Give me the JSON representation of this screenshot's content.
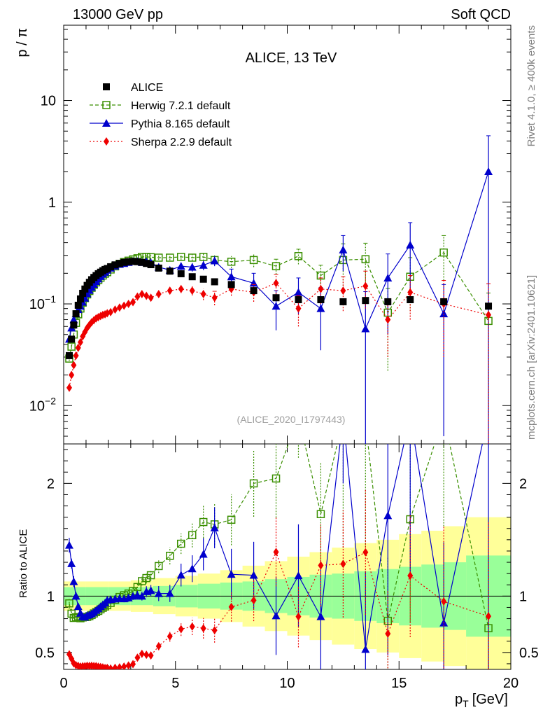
{
  "header": {
    "left": "13000 GeV pp",
    "right": "Soft QCD",
    "side_top": "Rivet 4.1.0, ≥ 400k events",
    "side_bottom": "mcplots.cern.ch [arXiv:2401.10621]"
  },
  "chart_data": {
    "type": "scatter",
    "title": "ALICE, 13 TeV",
    "analysis_id": "(ALICE_2020_I1797443)",
    "xlabel_main": "p",
    "xlabel_sub": "T",
    "xlabel_unit": "[GeV]",
    "ylabel": "p / π",
    "ratio_ylabel": "Ratio to ALICE",
    "xlim": [
      0,
      20
    ],
    "ylim": [
      0.0042,
      55
    ],
    "yscale": "log",
    "ratio_ylim": [
      0.35,
      2.35
    ],
    "x_ticks": [
      "0",
      "5",
      "10",
      "15",
      "20"
    ],
    "y_ticks": [
      {
        "v": 0.01,
        "base": "10",
        "exp": "−2"
      },
      {
        "v": 0.1,
        "base": "10",
        "exp": "−1"
      },
      {
        "v": 1,
        "base": "1",
        "exp": ""
      },
      {
        "v": 10,
        "base": "10",
        "exp": ""
      }
    ],
    "ratio_ticks": [
      {
        "v": 0.5,
        "label": "0.5"
      },
      {
        "v": 1,
        "label": "1"
      },
      {
        "v": 2,
        "label": "2"
      }
    ],
    "legend": [
      {
        "name": "ALICE",
        "color": "#000000",
        "marker": "square"
      },
      {
        "name": "Herwig 7.2.1 default",
        "color": "#3a8f00",
        "marker": "open-square"
      },
      {
        "name": "Pythia 8.165 default",
        "color": "#0000cc",
        "marker": "triangle"
      },
      {
        "name": "Sherpa 2.2.9 default",
        "color": "#ee0000",
        "marker": "diamond"
      }
    ],
    "data": {
      "x": [
        0.25,
        0.35,
        0.45,
        0.55,
        0.65,
        0.75,
        0.85,
        0.95,
        1.05,
        1.15,
        1.25,
        1.35,
        1.45,
        1.55,
        1.65,
        1.75,
        1.85,
        1.95,
        2.1,
        2.3,
        2.5,
        2.7,
        2.9,
        3.1,
        3.3,
        3.5,
        3.7,
        3.9,
        4.25,
        4.75,
        5.25,
        5.75,
        6.25,
        6.75,
        7.5,
        8.5,
        9.5,
        10.5,
        11.5,
        12.5,
        13.5,
        14.5,
        15.5,
        17.0,
        19.0
      ],
      "alice": [
        0.031,
        0.045,
        0.062,
        0.08,
        0.097,
        0.112,
        0.127,
        0.14,
        0.152,
        0.163,
        0.173,
        0.182,
        0.19,
        0.198,
        0.205,
        0.212,
        0.218,
        0.223,
        0.232,
        0.242,
        0.25,
        0.256,
        0.26,
        0.262,
        0.26,
        0.256,
        0.25,
        0.243,
        0.225,
        0.21,
        0.198,
        0.185,
        0.175,
        0.165,
        0.155,
        0.135,
        0.115,
        0.11,
        0.11,
        0.105,
        0.108,
        0.105,
        0.11,
        0.105,
        0.095
      ],
      "herwig": [
        0.029,
        0.038,
        0.05,
        0.065,
        0.079,
        0.09,
        0.103,
        0.114,
        0.124,
        0.134,
        0.144,
        0.154,
        0.163,
        0.172,
        0.181,
        0.19,
        0.198,
        0.205,
        0.218,
        0.234,
        0.248,
        0.258,
        0.266,
        0.274,
        0.281,
        0.29,
        0.29,
        0.288,
        0.285,
        0.285,
        0.29,
        0.285,
        0.29,
        0.27,
        0.26,
        0.27,
        0.235,
        0.295,
        0.19,
        0.27,
        0.275,
        0.082,
        0.185,
        0.32,
        0.068
      ],
      "herwig_err": [
        0.0015,
        0.002,
        0.002,
        0.002,
        0.003,
        0.003,
        0.003,
        0.003,
        0.004,
        0.004,
        0.004,
        0.004,
        0.005,
        0.005,
        0.005,
        0.005,
        0.006,
        0.006,
        0.006,
        0.007,
        0.007,
        0.008,
        0.008,
        0.009,
        0.009,
        0.01,
        0.012,
        0.012,
        0.014,
        0.016,
        0.018,
        0.02,
        0.025,
        0.03,
        0.035,
        0.04,
        0.04,
        0.05,
        0.05,
        0.12,
        0.12,
        0.06,
        0.1,
        0.15,
        0.06
      ],
      "pythia": [
        0.045,
        0.058,
        0.07,
        0.08,
        0.088,
        0.095,
        0.104,
        0.114,
        0.126,
        0.136,
        0.146,
        0.156,
        0.166,
        0.176,
        0.186,
        0.196,
        0.205,
        0.215,
        0.225,
        0.236,
        0.245,
        0.25,
        0.256,
        0.262,
        0.262,
        0.256,
        0.26,
        0.255,
        0.23,
        0.215,
        0.235,
        0.23,
        0.24,
        0.265,
        0.185,
        0.16,
        0.095,
        0.13,
        0.09,
        0.34,
        0.057,
        0.18,
        0.38,
        0.08,
        2.0
      ],
      "pythia_err": [
        0.002,
        0.002,
        0.003,
        0.003,
        0.003,
        0.003,
        0.004,
        0.004,
        0.004,
        0.004,
        0.005,
        0.005,
        0.005,
        0.005,
        0.006,
        0.006,
        0.006,
        0.007,
        0.007,
        0.008,
        0.008,
        0.008,
        0.009,
        0.009,
        0.01,
        0.01,
        0.012,
        0.012,
        0.015,
        0.016,
        0.02,
        0.022,
        0.025,
        0.03,
        0.035,
        0.04,
        0.04,
        0.05,
        0.055,
        0.13,
        0.075,
        0.13,
        0.25,
        0.075,
        2.5
      ],
      "sherpa": [
        0.015,
        0.02,
        0.025,
        0.031,
        0.037,
        0.042,
        0.048,
        0.053,
        0.058,
        0.062,
        0.066,
        0.069,
        0.072,
        0.074,
        0.076,
        0.078,
        0.079,
        0.081,
        0.083,
        0.088,
        0.092,
        0.096,
        0.1,
        0.104,
        0.118,
        0.125,
        0.12,
        0.115,
        0.125,
        0.135,
        0.14,
        0.135,
        0.125,
        0.115,
        0.14,
        0.13,
        0.16,
        0.09,
        0.14,
        0.135,
        0.15,
        0.07,
        0.13,
        0.1,
        0.078
      ],
      "sherpa_err": [
        0.0008,
        0.001,
        0.001,
        0.0012,
        0.0012,
        0.0014,
        0.0015,
        0.0016,
        0.0018,
        0.0018,
        0.002,
        0.002,
        0.002,
        0.002,
        0.002,
        0.002,
        0.002,
        0.002,
        0.002,
        0.003,
        0.003,
        0.004,
        0.004,
        0.005,
        0.005,
        0.006,
        0.006,
        0.007,
        0.008,
        0.01,
        0.012,
        0.014,
        0.016,
        0.018,
        0.02,
        0.025,
        0.035,
        0.03,
        0.04,
        0.05,
        0.06,
        0.04,
        0.06,
        0.07,
        0.08
      ],
      "band_edges": [
        0,
        1,
        2,
        3,
        4,
        5,
        6,
        7,
        8,
        9,
        10,
        11,
        12,
        13,
        14,
        15,
        16,
        17,
        18,
        20
      ],
      "band_green": [
        0.08,
        0.08,
        0.08,
        0.08,
        0.09,
        0.1,
        0.11,
        0.12,
        0.13,
        0.15,
        0.17,
        0.19,
        0.2,
        0.22,
        0.24,
        0.26,
        0.28,
        0.3,
        0.36
      ],
      "band_yellow": [
        0.13,
        0.13,
        0.13,
        0.14,
        0.16,
        0.18,
        0.2,
        0.23,
        0.27,
        0.31,
        0.35,
        0.39,
        0.43,
        0.47,
        0.5,
        0.55,
        0.58,
        0.62,
        0.7
      ]
    }
  }
}
